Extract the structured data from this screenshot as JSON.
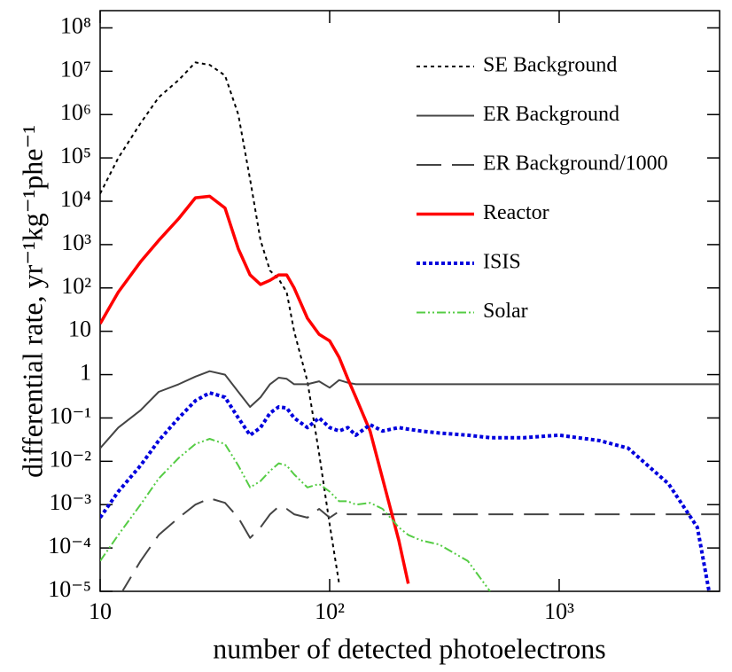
{
  "chart_data": {
    "type": "line",
    "xlabel": "number of detected photoelectrons",
    "ylabel": "differential rate, yr⁻¹kg⁻¹phe⁻¹",
    "xscale": "log",
    "yscale": "log",
    "xlim": [
      10,
      5000
    ],
    "ylim": [
      1e-05,
      250000000.0
    ],
    "xticks": [
      10,
      {
        "value": 100,
        "label": "10²"
      },
      {
        "value": 1000,
        "label": "10³"
      }
    ],
    "yticks": [
      {
        "value": 1e-05,
        "label": "10⁻⁵"
      },
      {
        "value": 0.0001,
        "label": "10⁻⁴"
      },
      {
        "value": 0.001,
        "label": "10⁻³"
      },
      {
        "value": 0.01,
        "label": "10⁻²"
      },
      {
        "value": 0.1,
        "label": "10⁻¹"
      },
      1,
      10,
      {
        "value": 100,
        "label": "10²"
      },
      {
        "value": 1000,
        "label": "10³"
      },
      {
        "value": 10000,
        "label": "10⁴"
      },
      {
        "value": 100000,
        "label": "10⁵"
      },
      {
        "value": 1000000,
        "label": "10⁶"
      },
      {
        "value": 10000000,
        "label": "10⁷"
      },
      {
        "value": 100000000,
        "label": "10⁸"
      }
    ],
    "legend": "upper right",
    "x": [
      10,
      12,
      15,
      18,
      22,
      26,
      30,
      35,
      40,
      45,
      50,
      55,
      60,
      65,
      70,
      80,
      90,
      100,
      110,
      120,
      130,
      150,
      170,
      200,
      220,
      250,
      300,
      400,
      500,
      700,
      1000,
      1500,
      2000,
      3000,
      4000,
      4500,
      5000
    ],
    "series": [
      {
        "name": "SE Background",
        "color": "#000000",
        "dash": "4 4",
        "width": 2,
        "values": [
          15000,
          100000,
          630000,
          2500000,
          6300000,
          16000000,
          14000000,
          8000000,
          1000000,
          32000,
          1250,
          250,
          160,
          80,
          10,
          0.7,
          0.015,
          0.00035,
          1.5e-05,
          null,
          null,
          null,
          null,
          null,
          null,
          null,
          null,
          null,
          null,
          null,
          null,
          null,
          null,
          null,
          null,
          null,
          null
        ]
      },
      {
        "name": "ER Background",
        "color": "#444444",
        "dash": "",
        "width": 2,
        "values": [
          0.02,
          0.06,
          0.15,
          0.4,
          0.6,
          0.9,
          1.2,
          1.0,
          0.4,
          0.18,
          0.3,
          0.6,
          0.85,
          0.8,
          0.6,
          0.6,
          0.7,
          0.5,
          0.75,
          0.65,
          0.6,
          0.6,
          0.6,
          0.6,
          0.6,
          0.6,
          0.6,
          0.6,
          0.6,
          0.6,
          0.6,
          0.6,
          0.6,
          0.6,
          0.6,
          0.6,
          0.6
        ]
      },
      {
        "name": "ER Background/1000",
        "color": "#444444",
        "dash": "28 12",
        "width": 2,
        "values": [
          null,
          7e-06,
          5e-05,
          0.0002,
          0.0005,
          0.001,
          0.0014,
          0.0011,
          0.0005,
          0.00017,
          0.0003,
          0.0006,
          0.0009,
          0.0008,
          0.0006,
          0.0005,
          0.0008,
          0.0005,
          0.0007,
          0.0006,
          0.0006,
          0.0006,
          0.0006,
          0.0006,
          0.0006,
          0.0006,
          0.0006,
          0.0006,
          0.0006,
          0.0006,
          0.0006,
          0.0006,
          0.0006,
          0.0006,
          0.0006,
          0.0006,
          0.0006
        ]
      },
      {
        "name": "Reactor",
        "color": "#ff0000",
        "dash": "",
        "width": 3.5,
        "values": [
          15,
          80,
          400,
          1250,
          4000,
          12000,
          13000,
          7000,
          800,
          200,
          120,
          150,
          200,
          200,
          100,
          20,
          8.5,
          6,
          2.5,
          0.8,
          0.3,
          0.05,
          0.004,
          0.00015,
          1.5e-05,
          null,
          null,
          null,
          null,
          null,
          null,
          null,
          null,
          null,
          null,
          null,
          null
        ]
      },
      {
        "name": "ISIS",
        "color": "#0000dd",
        "dash": "4 3",
        "width": 4,
        "values": [
          0.0005,
          0.002,
          0.008,
          0.03,
          0.1,
          0.25,
          0.38,
          0.3,
          0.1,
          0.04,
          0.06,
          0.13,
          0.18,
          0.17,
          0.1,
          0.06,
          0.1,
          0.06,
          0.05,
          0.06,
          0.04,
          0.07,
          0.05,
          0.06,
          0.055,
          0.05,
          0.045,
          0.04,
          0.035,
          0.035,
          0.04,
          0.03,
          0.02,
          0.003,
          0.0003,
          1e-05,
          null
        ]
      },
      {
        "name": "Solar",
        "color": "#55cc44",
        "dash": "10 3 2 3 2 3",
        "width": 2,
        "values": [
          5e-05,
          0.0002,
          0.001,
          0.004,
          0.012,
          0.025,
          0.033,
          0.025,
          0.008,
          0.0025,
          0.0035,
          0.006,
          0.009,
          0.008,
          0.005,
          0.0025,
          0.003,
          0.002,
          0.0012,
          0.0012,
          0.001,
          0.0011,
          0.0008,
          0.0003,
          0.0002,
          0.00015,
          0.00012,
          5e-05,
          1e-05,
          null,
          null,
          null,
          null,
          null,
          null,
          null,
          null
        ]
      }
    ]
  }
}
